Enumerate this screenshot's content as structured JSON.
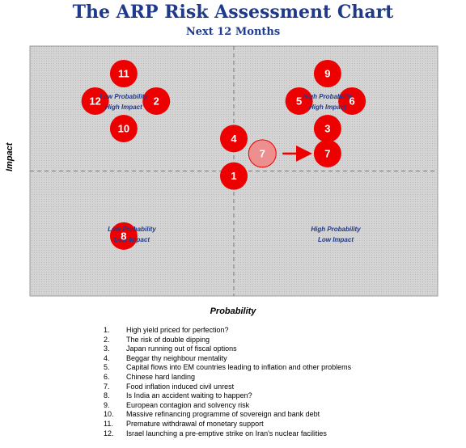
{
  "chart_data": {
    "type": "scatter",
    "title": "The ARP Risk Assessment Chart",
    "subtitle": "Next 12 Months",
    "xlabel": "Probability",
    "ylabel": "Impact",
    "xlim": [
      0,
      10
    ],
    "ylim": [
      0,
      10
    ],
    "grid": false,
    "quadrant_labels": [
      {
        "quadrant": "top-left",
        "lines": [
          "Low Probability",
          "High Impact"
        ]
      },
      {
        "quadrant": "top-right",
        "lines": [
          "High Probability",
          "High Impact"
        ]
      },
      {
        "quadrant": "bottom-left",
        "lines": [
          "Low Probability",
          "Low Impact"
        ]
      },
      {
        "quadrant": "bottom-right",
        "lines": [
          "High Probability",
          "Low Impact"
        ]
      }
    ],
    "points": [
      {
        "label": "1",
        "x": 5.0,
        "y": 4.8
      },
      {
        "label": "2",
        "x": 3.1,
        "y": 7.8
      },
      {
        "label": "3",
        "x": 7.3,
        "y": 6.7
      },
      {
        "label": "4",
        "x": 5.0,
        "y": 6.3
      },
      {
        "label": "5",
        "x": 6.6,
        "y": 7.8
      },
      {
        "label": "6",
        "x": 7.9,
        "y": 7.8
      },
      {
        "label": "7",
        "x": 7.3,
        "y": 5.7
      },
      {
        "label": "7",
        "x": 5.7,
        "y": 5.7,
        "previous": true
      },
      {
        "label": "8",
        "x": 2.3,
        "y": 2.4
      },
      {
        "label": "9",
        "x": 7.3,
        "y": 8.9
      },
      {
        "label": "10",
        "x": 2.3,
        "y": 6.7
      },
      {
        "label": "11",
        "x": 2.3,
        "y": 8.9
      },
      {
        "label": "12",
        "x": 1.6,
        "y": 7.8
      }
    ],
    "arrow": {
      "from_label": "7",
      "from": [
        5.7,
        5.7
      ],
      "to": [
        7.3,
        5.7
      ]
    }
  },
  "legend": [
    {
      "num": "1.",
      "text": "High yield priced for perfection?"
    },
    {
      "num": "2.",
      "text": "The risk of double dipping"
    },
    {
      "num": "3.",
      "text": "Japan running out of fiscal options"
    },
    {
      "num": "4.",
      "text": "Beggar thy neighbour mentality"
    },
    {
      "num": "5.",
      "text": "Capital flows into EM countries leading to inflation and other problems"
    },
    {
      "num": "6.",
      "text": "Chinese hard landing"
    },
    {
      "num": "7.",
      "text": "Food inflation induced civil unrest"
    },
    {
      "num": "8.",
      "text": "Is India an accident waiting to happen?"
    },
    {
      "num": "9.",
      "text": "European contagion and solvency risk"
    },
    {
      "num": "10.",
      "text": "Massive refinancing programme of sovereign and bank debt"
    },
    {
      "num": "11.",
      "text": "Premature withdrawal of monetary support"
    },
    {
      "num": "12.",
      "text": "Israel launching a pre-emptive strike on Iran's nuclear facilities"
    }
  ],
  "colors": {
    "bubble": "#ee0000",
    "bubble_previous": "#ee8f8f",
    "arrow": "#ee0000",
    "title": "#1f3a8a",
    "quadrant_text": "#1f3a8a",
    "plot_background": "#d4d4d4"
  }
}
